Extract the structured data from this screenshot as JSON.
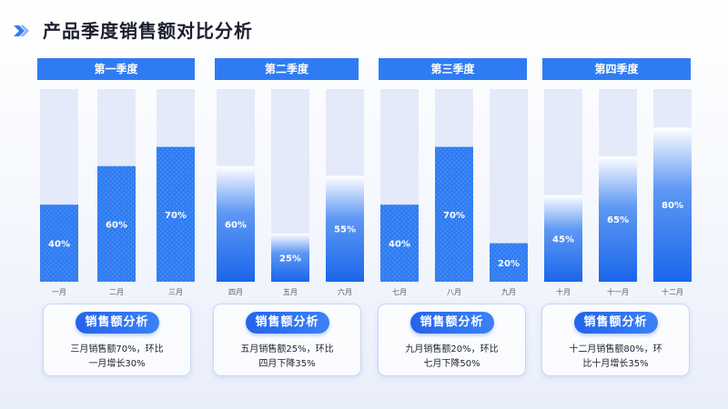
{
  "page": {
    "title": "产品季度销售额对比分析",
    "accent_color": "#2f7cf2",
    "icon": "chevron-right-icon"
  },
  "quarters": [
    {
      "label": "第一季度",
      "analysis_title": "销售额分析",
      "analysis_line1": "三月销售额70%，环比",
      "analysis_line2": "一月增长30%"
    },
    {
      "label": "第二季度",
      "analysis_title": "销售额分析",
      "analysis_line1": "五月销售额25%，环比",
      "analysis_line2": "四月下降35%"
    },
    {
      "label": "第三季度",
      "analysis_title": "销售额分析",
      "analysis_line1": "九月销售额20%，环比",
      "analysis_line2": "七月下降50%"
    },
    {
      "label": "第四季度",
      "analysis_title": "销售额分析",
      "analysis_line1": "十二月销售额80%，环",
      "analysis_line2": "比十月增长35%"
    }
  ],
  "chart_data": {
    "type": "bar",
    "ylim": [
      0,
      100
    ],
    "value_format": "percent",
    "categories": [
      "一月",
      "二月",
      "三月",
      "四月",
      "五月",
      "六月",
      "七月",
      "八月",
      "九月",
      "十月",
      "十一月",
      "十二月"
    ],
    "values": [
      40,
      60,
      70,
      60,
      25,
      55,
      40,
      70,
      20,
      45,
      65,
      80
    ],
    "value_labels": [
      "40%",
      "60%",
      "70%",
      "60%",
      "25%",
      "55%",
      "40%",
      "70%",
      "20%",
      "45%",
      "65%",
      "80%"
    ],
    "fill_styles": [
      "dotted",
      "dotted",
      "dotted",
      "gradient",
      "gradient",
      "gradient",
      "dotted",
      "dotted",
      "dotted",
      "gradient",
      "gradient",
      "gradient"
    ],
    "colors": {
      "bar": "#2f7cf2",
      "bar_dark": "#1a66ea",
      "track": "#e4eaf9"
    }
  }
}
